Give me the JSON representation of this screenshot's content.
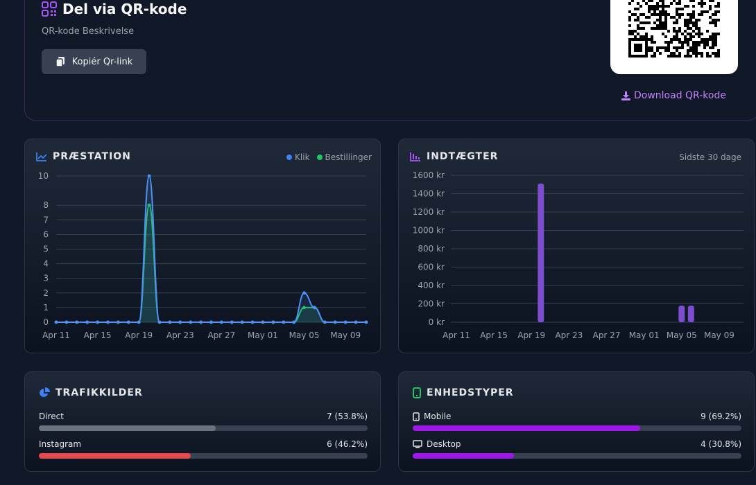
{
  "qr": {
    "title": "Del via QR-kode",
    "description": "QR-kode Beskrivelse",
    "copy_label": "Kopiér Qr-link",
    "download_label": "Download QR-kode"
  },
  "performance": {
    "title": "PRÆSTATION",
    "legend": [
      "Klik",
      "Bestillinger"
    ]
  },
  "revenue": {
    "title": "INDTÆGTER",
    "period": "Sidste 30 dage"
  },
  "traffic": {
    "title": "TRAFIKKILDER",
    "items": [
      {
        "label": "Direct",
        "value": "7 (53.8%)",
        "fraction": 0.538,
        "color": "#6b7280"
      },
      {
        "label": "Instagram",
        "value": "6 (46.2%)",
        "fraction": 0.462,
        "color": "#e5484d"
      }
    ]
  },
  "devices": {
    "title": "ENHEDSTYPER",
    "items": [
      {
        "label": "Mobile",
        "value": "9 (69.2%)",
        "fraction": 0.692,
        "color": "#9d17e6",
        "icon": "mobile-icon"
      },
      {
        "label": "Desktop",
        "value": "4 (30.8%)",
        "fraction": 0.308,
        "color": "#9d17e6",
        "icon": "desktop-icon"
      }
    ]
  },
  "chart_data": [
    {
      "type": "line",
      "title": "PRÆSTATION",
      "x_tick_labels": [
        "Apr 11",
        "Apr 15",
        "Apr 19",
        "Apr 23",
        "Apr 27",
        "May 01",
        "May 05",
        "May 09"
      ],
      "x": [
        "Apr 11",
        "Apr 12",
        "Apr 13",
        "Apr 14",
        "Apr 15",
        "Apr 16",
        "Apr 17",
        "Apr 18",
        "Apr 19",
        "Apr 20",
        "Apr 21",
        "Apr 22",
        "Apr 23",
        "Apr 24",
        "Apr 25",
        "Apr 26",
        "Apr 27",
        "Apr 28",
        "Apr 29",
        "Apr 30",
        "May 01",
        "May 02",
        "May 03",
        "May 04",
        "May 05",
        "May 06",
        "May 07",
        "May 08",
        "May 09",
        "May 10",
        "May 11"
      ],
      "series": [
        {
          "name": "Klik",
          "color": "#4f8ff7",
          "values": [
            0,
            0,
            0,
            0,
            0,
            0,
            0,
            0,
            0,
            10,
            0,
            0,
            0,
            0,
            0,
            0,
            0,
            0,
            0,
            0,
            0,
            0,
            0,
            0,
            2,
            1,
            0,
            0,
            0,
            0,
            0
          ]
        },
        {
          "name": "Bestillinger",
          "color": "#22c55e",
          "values": [
            0,
            0,
            0,
            0,
            0,
            0,
            0,
            0,
            0,
            8,
            0,
            0,
            0,
            0,
            0,
            0,
            0,
            0,
            0,
            0,
            0,
            0,
            0,
            0,
            1,
            1,
            0,
            0,
            0,
            0,
            0
          ]
        }
      ],
      "y_ticks": [
        0,
        1,
        2,
        3,
        4,
        5,
        6,
        7,
        8,
        10
      ],
      "ylim": [
        0,
        10
      ],
      "legend": "top-right",
      "grid": true
    },
    {
      "type": "bar",
      "title": "INDTÆGTER",
      "x_tick_labels": [
        "Apr 11",
        "Apr 15",
        "Apr 19",
        "Apr 23",
        "Apr 27",
        "May 01",
        "May 05",
        "May 09"
      ],
      "bars": [
        {
          "date": "Apr 20",
          "value": 1510
        },
        {
          "date": "May 05",
          "value": 180
        },
        {
          "date": "May 06",
          "value": 180
        }
      ],
      "y_ticks": [
        "0 kr",
        "200 kr",
        "400 kr",
        "600 kr",
        "800 kr",
        "1000 kr",
        "1200 kr",
        "1400 kr",
        "1600 kr"
      ],
      "ylim": [
        0,
        1600
      ],
      "color": "#7c4dcc",
      "grid": true
    }
  ]
}
